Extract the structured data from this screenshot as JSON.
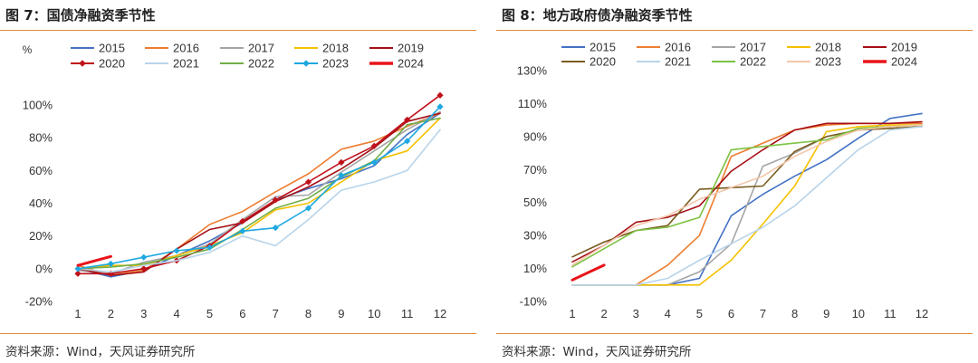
{
  "panels": [
    {
      "title": "图 7：国债净融资季节性",
      "source": "资料来源：Wind，天风证券研究所"
    },
    {
      "title": "图 8：地方政府债净融资季节性",
      "source": "资料来源：Wind，天风证券研究所"
    }
  ],
  "chart_data": [
    {
      "type": "line",
      "title": "图 7：国债净融资季节性",
      "ylabel": "%",
      "ylim": [
        -20,
        110
      ],
      "yticks": [
        -20,
        0,
        20,
        40,
        60,
        80,
        100
      ],
      "ytick_labels": [
        "-20%",
        "0%",
        "20%",
        "40%",
        "60%",
        "80%",
        "100%"
      ],
      "x": [
        1,
        2,
        3,
        4,
        5,
        6,
        7,
        8,
        9,
        10,
        11,
        12
      ],
      "grid": false,
      "legend_position": "top",
      "series": [
        {
          "name": "2015",
          "color": "#4472c4",
          "width": 1.6,
          "marker": "",
          "values": [
            0,
            -5,
            -1,
            8,
            17,
            28,
            42,
            49,
            55,
            63,
            82,
            95
          ]
        },
        {
          "name": "2016",
          "color": "#ed7d31",
          "width": 1.6,
          "marker": "",
          "values": [
            2,
            -4,
            -1,
            12,
            27,
            35,
            47,
            58,
            73,
            78,
            87,
            95
          ]
        },
        {
          "name": "2017",
          "color": "#a5a5a5",
          "width": 1.6,
          "marker": "",
          "values": [
            -1,
            -3,
            4,
            8,
            15,
            30,
            44,
            45,
            59,
            72,
            85,
            96
          ]
        },
        {
          "name": "2018",
          "color": "#f5c000",
          "width": 1.6,
          "marker": "",
          "values": [
            0,
            2,
            2,
            8,
            14,
            22,
            36,
            40,
            53,
            66,
            72,
            92
          ]
        },
        {
          "name": "2019",
          "color": "#a50f15",
          "width": 1.6,
          "marker": "",
          "values": [
            0,
            -4,
            -2,
            12,
            24,
            28,
            41,
            50,
            61,
            74,
            90,
            95
          ]
        },
        {
          "name": "2020",
          "color": "#c0101a",
          "width": 1.6,
          "marker": "diamond",
          "values": [
            -3,
            -3,
            0,
            5,
            14,
            29,
            42,
            53,
            65,
            75,
            91,
            106
          ]
        },
        {
          "name": "2021",
          "color": "#b8d4ea",
          "width": 1.6,
          "marker": "",
          "values": [
            0,
            -2,
            2,
            5,
            10,
            20,
            14,
            30,
            48,
            53,
            60,
            85
          ]
        },
        {
          "name": "2022",
          "color": "#70ad47",
          "width": 1.6,
          "marker": "",
          "values": [
            0,
            1,
            3,
            7,
            12,
            24,
            37,
            43,
            56,
            66,
            88,
            92
          ]
        },
        {
          "name": "2023",
          "color": "#1fa8e0",
          "width": 1.6,
          "marker": "diamond",
          "values": [
            0,
            3,
            7,
            11,
            13,
            23,
            25,
            37,
            57,
            65,
            78,
            99
          ]
        },
        {
          "name": "2024",
          "color": "#e8141a",
          "width": 3,
          "marker": "",
          "values": [
            2,
            7.5,
            null,
            null,
            null,
            null,
            null,
            null,
            null,
            null,
            null,
            null
          ]
        }
      ]
    },
    {
      "type": "line",
      "title": "图 8：地方政府债净融资季节性",
      "ylabel": "",
      "ylim": [
        -10,
        130
      ],
      "yticks": [
        -10,
        10,
        30,
        50,
        70,
        90,
        110,
        130
      ],
      "ytick_labels": [
        "-10%",
        "10%",
        "30%",
        "50%",
        "70%",
        "90%",
        "110%",
        "130%"
      ],
      "x": [
        1,
        2,
        3,
        4,
        5,
        6,
        7,
        8,
        9,
        10,
        11,
        12
      ],
      "grid": false,
      "legend_position": "top",
      "series": [
        {
          "name": "2015",
          "color": "#4472c4",
          "width": 1.6,
          "marker": "",
          "values": [
            0,
            0,
            0,
            0,
            4,
            42,
            55,
            66,
            76,
            89,
            101,
            104
          ]
        },
        {
          "name": "2016",
          "color": "#ed7d31",
          "width": 1.6,
          "marker": "",
          "values": [
            0,
            0,
            0,
            12,
            30,
            78,
            86,
            94,
            97,
            98,
            98,
            98
          ]
        },
        {
          "name": "2017",
          "color": "#a5a5a5",
          "width": 1.6,
          "marker": "",
          "values": [
            0,
            0,
            0,
            0,
            8,
            25,
            72,
            80,
            90,
            94,
            96,
            97
          ]
        },
        {
          "name": "2018",
          "color": "#f5c000",
          "width": 1.6,
          "marker": "",
          "values": [
            0,
            0,
            0,
            0,
            0,
            15,
            37,
            60,
            93,
            96,
            97,
            97
          ]
        },
        {
          "name": "2019",
          "color": "#a50f15",
          "width": 1.6,
          "marker": "",
          "values": [
            14,
            24,
            38,
            41,
            48,
            69,
            82,
            94,
            98,
            98,
            98,
            99
          ]
        },
        {
          "name": "2020",
          "color": "#7a5c1e",
          "width": 1.6,
          "marker": "",
          "values": [
            17,
            26,
            33,
            36,
            58,
            59,
            60,
            81,
            90,
            94,
            95,
            96
          ]
        },
        {
          "name": "2021",
          "color": "#b8d4ea",
          "width": 1.6,
          "marker": "",
          "values": [
            0,
            0,
            0,
            4,
            15,
            25,
            35,
            48,
            65,
            82,
            94,
            96
          ]
        },
        {
          "name": "2022",
          "color": "#7dc242",
          "width": 1.6,
          "marker": "",
          "values": [
            11,
            22,
            33,
            35,
            41,
            82,
            84,
            86,
            88,
            95,
            96,
            97
          ]
        },
        {
          "name": "2023",
          "color": "#f4c6ab",
          "width": 1.6,
          "marker": "",
          "values": [
            12,
            24,
            36,
            42,
            52,
            59,
            66,
            78,
            87,
            94,
            96,
            97
          ]
        },
        {
          "name": "2024",
          "color": "#e8141a",
          "width": 3,
          "marker": "",
          "values": [
            3,
            12,
            null,
            null,
            null,
            null,
            null,
            null,
            null,
            null,
            null,
            null
          ]
        }
      ]
    }
  ]
}
